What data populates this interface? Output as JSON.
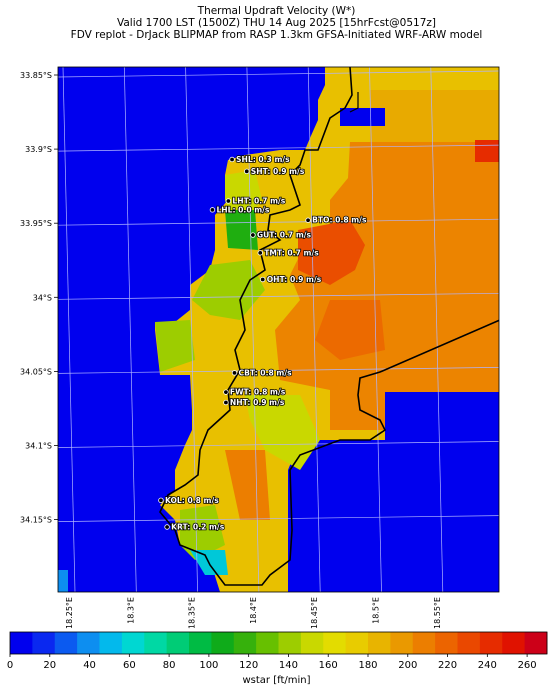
{
  "title": {
    "line1": "Thermal Updraft Velocity (W*)",
    "line2": "Valid 1700 LST (1500Z) THU 14 Aug 2025 [15hrFcst@0517z]",
    "line3": "FDV replot - DrJack BLIPMAP from RASP 1.3km GFSA-Initiated WRF-ARW model"
  },
  "axes": {
    "lat_ticks": [
      "33.85°S",
      "33.9°S",
      "33.95°S",
      "34°S",
      "34.05°S",
      "34.1°S",
      "34.15°S"
    ],
    "lat_values": [
      -33.85,
      -33.9,
      -33.95,
      -34.0,
      -34.05,
      -34.1,
      -34.15
    ],
    "lon_ticks": [
      "18.25°E",
      "18.3°E",
      "18.35°E",
      "18.4°E",
      "18.45°E",
      "18.5°E",
      "18.55°E"
    ],
    "lon_values": [
      18.25,
      18.3,
      18.35,
      18.4,
      18.45,
      18.5,
      18.55
    ]
  },
  "stations": [
    {
      "code": "SHL",
      "label": "SHL: 0.3 m/s",
      "value": 0.3,
      "lon": 18.383,
      "lat": -33.907
    },
    {
      "code": "SHT",
      "label": "SHT: 0.9 m/s",
      "value": 0.9,
      "lon": 18.395,
      "lat": -33.915
    },
    {
      "code": "LHT",
      "label": "LHT: 0.7 m/s",
      "value": 0.7,
      "lon": 18.38,
      "lat": -33.935
    },
    {
      "code": "LHL",
      "label": "LHL: 0.0 m/s",
      "value": 0.0,
      "lon": 18.367,
      "lat": -33.941
    },
    {
      "code": "BTO",
      "label": "BTO: 0.8 m/s",
      "value": 0.8,
      "lon": 18.445,
      "lat": -33.948
    },
    {
      "code": "GUT",
      "label": "GUT: 0.7 m/s",
      "value": 0.7,
      "lon": 18.4,
      "lat": -33.958
    },
    {
      "code": "TMT",
      "label": "TMT: 0.7 m/s",
      "value": 0.7,
      "lon": 18.406,
      "lat": -33.97
    },
    {
      "code": "OHT",
      "label": "OHT: 0.9 m/s",
      "value": 0.9,
      "lon": 18.408,
      "lat": -33.988
    },
    {
      "code": "CBT",
      "label": "CBT: 0.8 m/s",
      "value": 0.8,
      "lon": 18.385,
      "lat": -34.051
    },
    {
      "code": "FWT",
      "label": "FWT: 0.8 m/s",
      "value": 0.8,
      "lon": 18.378,
      "lat": -34.064
    },
    {
      "code": "NHT",
      "label": "NHT: 0.9 m/s",
      "value": 0.9,
      "lon": 18.378,
      "lat": -34.071
    },
    {
      "code": "KOL",
      "label": "KOL: 0.8 m/s",
      "value": 0.8,
      "lon": 18.325,
      "lat": -34.137
    },
    {
      "code": "KRT",
      "label": "KRT: 0.2 m/s",
      "value": 0.2,
      "lon": 18.33,
      "lat": -34.155
    }
  ],
  "colorbar": {
    "label": "wstar [ft/min]",
    "tick_labels": [
      "0",
      "20",
      "40",
      "60",
      "80",
      "100",
      "120",
      "140",
      "160",
      "180",
      "200",
      "220",
      "240",
      "260"
    ],
    "range": [
      0,
      270
    ],
    "colors": [
      "#0000ee",
      "#0a28f0",
      "#0b5af0",
      "#0d8ef0",
      "#03b9ec",
      "#00d7d2",
      "#00d8a4",
      "#00cc76",
      "#00bb44",
      "#0fab1a",
      "#36b10c",
      "#67c000",
      "#9dcd00",
      "#c9d800",
      "#e3dc00",
      "#e8cc00",
      "#e8b400",
      "#ea9900",
      "#ec7e00",
      "#ec6400",
      "#ea4800",
      "#e62c00",
      "#e01200",
      "#cc0018"
    ]
  },
  "map_colors": {
    "water": "#0000ee",
    "coast": "#000000",
    "grid": "#b0b4ff"
  }
}
